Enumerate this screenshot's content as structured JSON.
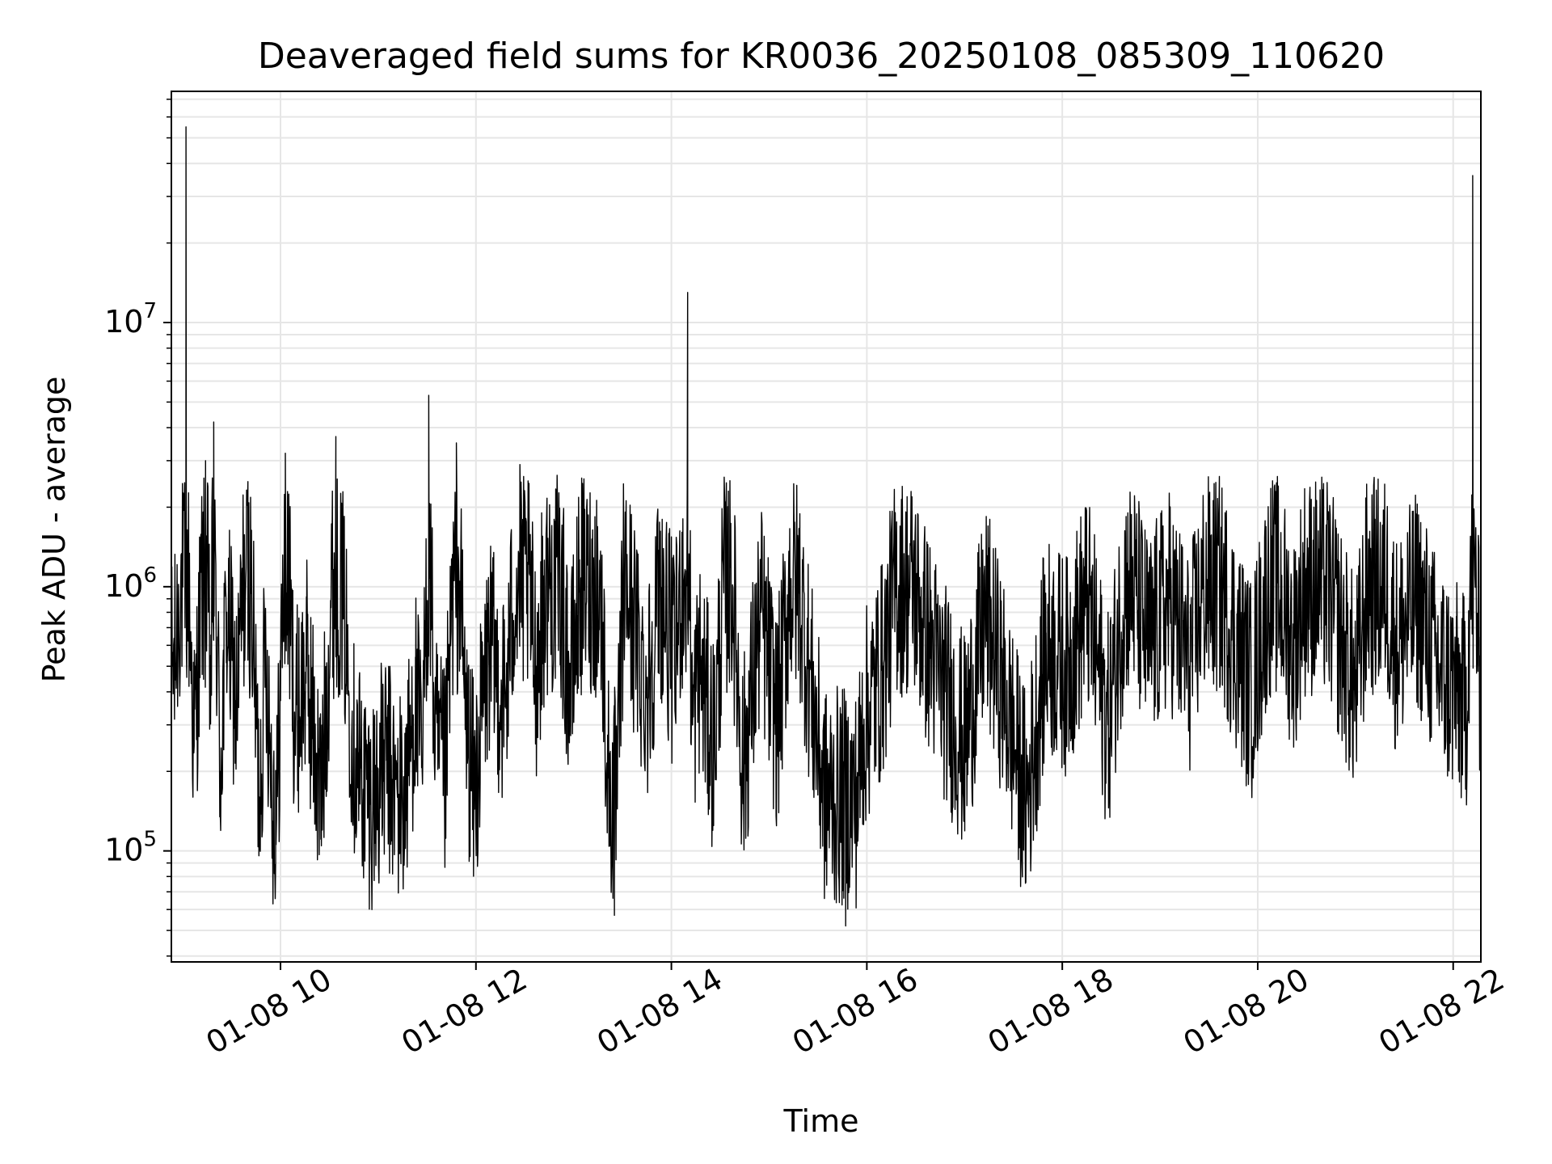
{
  "chart_data": {
    "type": "line",
    "title": "Deaveraged field sums for KR0036_20250108_085309_110620",
    "xlabel": "Time",
    "ylabel": "Peak ADU - average",
    "y_scale": "log",
    "grid": true,
    "grid_color": "#e6e6e6",
    "line_color": "#000000",
    "xlim": [
      "01-08 08:53",
      "01-08 22:17"
    ],
    "ylim": [
      38000,
      75000000
    ],
    "x_ticks": [
      {
        "value": "01-08 10:00",
        "label": "01-08 10"
      },
      {
        "value": "01-08 12:00",
        "label": "01-08 12"
      },
      {
        "value": "01-08 14:00",
        "label": "01-08 14"
      },
      {
        "value": "01-08 16:00",
        "label": "01-08 16"
      },
      {
        "value": "01-08 18:00",
        "label": "01-08 18"
      },
      {
        "value": "01-08 20:00",
        "label": "01-08 20"
      },
      {
        "value": "01-08 22:00",
        "label": "01-08 22"
      }
    ],
    "y_ticks": [
      {
        "value": 100000,
        "base": "10",
        "exp": "5"
      },
      {
        "value": 1000000,
        "base": "10",
        "exp": "6"
      },
      {
        "value": 10000000,
        "base": "10",
        "exp": "7"
      }
    ],
    "series": [
      {
        "x": [
          "01-08 08:55",
          "01-08 09:02",
          "01-08 09:07",
          "01-08 09:14",
          "01-08 09:17",
          "01-08 09:19",
          "01-08 09:23",
          "01-08 09:27",
          "01-08 09:33",
          "01-08 09:40",
          "01-08 09:47",
          "01-08 09:51",
          "01-08 09:57",
          "01-08 10:03",
          "01-08 10:09",
          "01-08 10:16",
          "01-08 10:25",
          "01-08 10:34",
          "01-08 10:45",
          "01-08 10:55",
          "01-08 11:05",
          "01-08 11:15",
          "01-08 11:23",
          "01-08 11:27",
          "01-08 11:31",
          "01-08 11:35",
          "01-08 11:41",
          "01-08 11:48",
          "01-08 11:54",
          "01-08 11:59",
          "01-08 12:08",
          "01-08 12:18",
          "01-08 12:27",
          "01-08 12:37",
          "01-08 12:48",
          "01-08 12:58",
          "01-08 13:08",
          "01-08 13:17",
          "01-08 13:25",
          "01-08 13:28",
          "01-08 13:31",
          "01-08 13:37",
          "01-08 13:45",
          "01-08 13:53",
          "01-08 14:02",
          "01-08 14:10",
          "01-08 14:13",
          "01-08 14:17",
          "01-08 14:26",
          "01-08 14:35",
          "01-08 14:44",
          "01-08 14:55",
          "01-08 15:05",
          "01-08 15:15",
          "01-08 15:26",
          "01-08 15:36",
          "01-08 15:47",
          "01-08 15:58",
          "01-08 16:10",
          "01-08 16:22",
          "01-08 16:35",
          "01-08 16:48",
          "01-08 17:00",
          "01-08 17:13",
          "01-08 17:26",
          "01-08 17:38",
          "01-08 17:50",
          "01-08 18:03",
          "01-08 18:15",
          "01-08 18:28",
          "01-08 18:40",
          "01-08 18:53",
          "01-08 19:06",
          "01-08 19:18",
          "01-08 19:31",
          "01-08 19:44",
          "01-08 19:56",
          "01-08 20:09",
          "01-08 20:22",
          "01-08 20:34",
          "01-08 20:47",
          "01-08 21:00",
          "01-08 21:12",
          "01-08 21:25",
          "01-08 21:38",
          "01-08 21:50",
          "01-08 22:02",
          "01-08 22:08",
          "01-08 22:12",
          "01-08 22:16"
        ],
        "y": [
          500000,
          55000000,
          250000,
          3000000,
          400000,
          4200000,
          200000,
          800000,
          350000,
          2500000,
          160000,
          600000,
          90000,
          3200000,
          300000,
          500000,
          150000,
          3700000,
          250000,
          150000,
          220000,
          130000,
          400000,
          200000,
          5300000,
          250000,
          180000,
          3500000,
          300000,
          160000,
          600000,
          350000,
          2900000,
          500000,
          1800000,
          400000,
          2000000,
          800000,
          57000,
          300000,
          1200000,
          700000,
          400000,
          1000000,
          500000,
          13000000,
          300000,
          500000,
          250000,
          2300000,
          200000,
          800000,
          300000,
          1500000,
          400000,
          130000,
          52000,
          300000,
          500000,
          1500000,
          700000,
          400000,
          250000,
          800000,
          350000,
          150000,
          600000,
          500000,
          900000,
          300000,
          1200000,
          600000,
          900000,
          500000,
          1400000,
          700000,
          400000,
          1200000,
          600000,
          1500000,
          800000,
          400000,
          1800000,
          600000,
          900000,
          500000,
          400000,
          350000,
          36000000,
          500000
        ]
      }
    ]
  }
}
